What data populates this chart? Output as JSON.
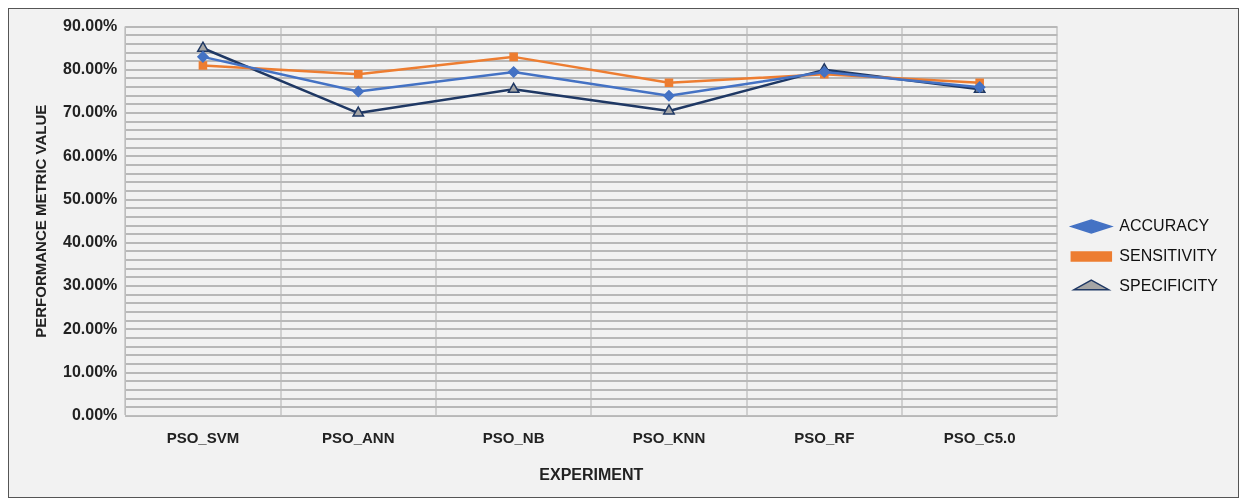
{
  "chart_data": {
    "type": "line",
    "xlabel": "EXPERIMENT",
    "ylabel": "PERFORMANCE METRIC VALUE",
    "categories": [
      "PSO_SVM",
      "PSO_ANN",
      "PSO_NB",
      "PSO_KNN",
      "PSO_RF",
      "PSO_C5.0"
    ],
    "series": [
      {
        "name": "ACCURACY",
        "color": "#4472c4",
        "marker": "diamond",
        "values": [
          83,
          75,
          79.5,
          74,
          79.5,
          76
        ]
      },
      {
        "name": "SENSITIVITY",
        "color": "#ed7d31",
        "marker": "square",
        "values": [
          81,
          79,
          83,
          77,
          79,
          77
        ]
      },
      {
        "name": "SPECIFICITY",
        "color": "#1f3864",
        "marker": "triangle",
        "values": [
          85,
          70,
          75.5,
          70.5,
          80,
          75.5
        ]
      }
    ],
    "ylim": [
      0,
      90
    ],
    "yticks": [
      {
        "value": 0,
        "label": "0.00%"
      },
      {
        "value": 2,
        "label": null
      },
      {
        "value": 4,
        "label": null
      },
      {
        "value": 6,
        "label": null
      },
      {
        "value": 8,
        "label": null
      },
      {
        "value": 10,
        "label": "10.00%"
      },
      {
        "value": 12,
        "label": null
      },
      {
        "value": 14,
        "label": null
      },
      {
        "value": 16,
        "label": null
      },
      {
        "value": 18,
        "label": null
      },
      {
        "value": 20,
        "label": "20.00%"
      },
      {
        "value": 22,
        "label": null
      },
      {
        "value": 24,
        "label": null
      },
      {
        "value": 26,
        "label": null
      },
      {
        "value": 28,
        "label": null
      },
      {
        "value": 30,
        "label": "30.00%"
      },
      {
        "value": 32,
        "label": null
      },
      {
        "value": 34,
        "label": null
      },
      {
        "value": 36,
        "label": null
      },
      {
        "value": 38,
        "label": null
      },
      {
        "value": 40,
        "label": "40.00%"
      },
      {
        "value": 42,
        "label": null
      },
      {
        "value": 44,
        "label": null
      },
      {
        "value": 46,
        "label": null
      },
      {
        "value": 48,
        "label": null
      },
      {
        "value": 50,
        "label": "50.00%"
      },
      {
        "value": 52,
        "label": null
      },
      {
        "value": 54,
        "label": null
      },
      {
        "value": 56,
        "label": null
      },
      {
        "value": 58,
        "label": null
      },
      {
        "value": 60,
        "label": "60.00%"
      },
      {
        "value": 62,
        "label": null
      },
      {
        "value": 64,
        "label": null
      },
      {
        "value": 66,
        "label": null
      },
      {
        "value": 68,
        "label": null
      },
      {
        "value": 70,
        "label": "70.00%"
      },
      {
        "value": 72,
        "label": null
      },
      {
        "value": 74,
        "label": null
      },
      {
        "value": 76,
        "label": null
      },
      {
        "value": 78,
        "label": null
      },
      {
        "value": 80,
        "label": "80.00%"
      },
      {
        "value": 82,
        "label": null
      },
      {
        "value": 84,
        "label": null
      },
      {
        "value": 86,
        "label": null
      },
      {
        "value": 88,
        "label": null
      },
      {
        "value": 90,
        "label": "90.00%"
      }
    ],
    "grid": true,
    "legend": "right"
  }
}
